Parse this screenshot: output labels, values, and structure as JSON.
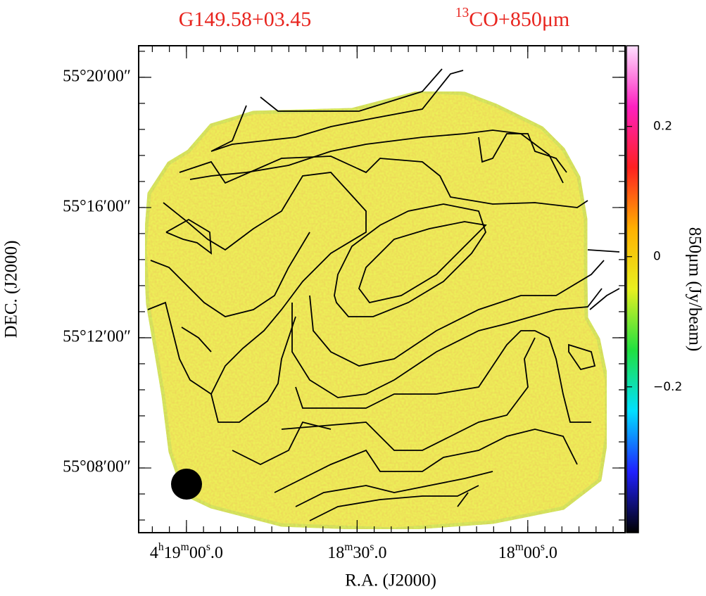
{
  "chart_data": {
    "type": "map",
    "title": "G149.58+03.45",
    "subtitle": "13CO+850μm",
    "x_label": "R.A. (J2000)",
    "y_label": "DEC. (J2000)",
    "colorbar_label": "850μm (Jy/beam)",
    "xlim": [
      15548.4,
      15462.9
    ],
    "xticks": [
      {
        "value": 15540,
        "label": "4h19m00s.0"
      },
      {
        "value": 15510,
        "label": "18m30s.0"
      },
      {
        "value": 15480,
        "label": "18m00s.0"
      }
    ],
    "ylim": [
      55.1002,
      55.3495
    ],
    "yticks": [
      {
        "value": 55.33333,
        "label": "55°20′00″"
      },
      {
        "value": 55.26667,
        "label": "55°16′00″"
      },
      {
        "value": 55.2,
        "label": "55°12′00″"
      },
      {
        "value": 55.13333,
        "label": "55°08′00″"
      }
    ],
    "clim": [
      -0.424,
      0.324
    ],
    "cticks": [
      {
        "value": 0.2,
        "label": "0.2"
      },
      0,
      {
        "value": -0.2,
        "label": "−0.2"
      }
    ],
    "colormap": [
      "#000000",
      "#2020ff",
      "#00e0ff",
      "#20e040",
      "#e8f020",
      "#ffb000",
      "#ff2020",
      "#ff20c0",
      "#ffe0ff"
    ]
  }
}
